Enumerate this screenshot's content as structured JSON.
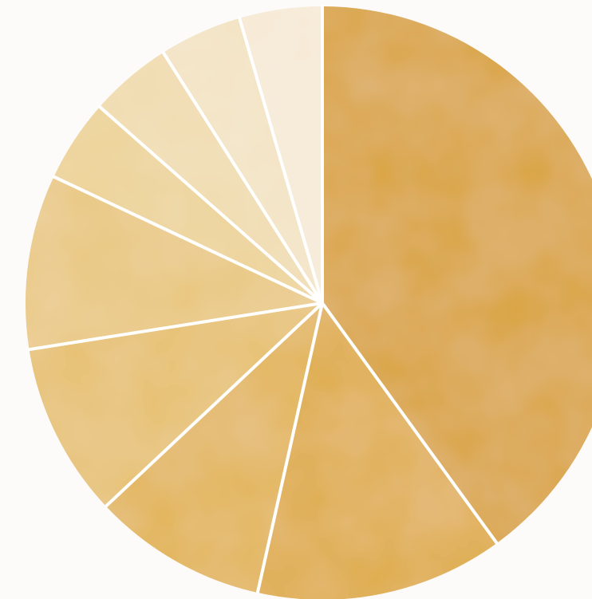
{
  "chart_data": {
    "type": "pie",
    "start_angle": "12 o'clock",
    "direction": "clockwise",
    "title": "",
    "legend": "none",
    "slices": [
      {
        "value": 40.0,
        "color": "#d9a234"
      },
      {
        "value": 13.5,
        "color": "#dfab43"
      },
      {
        "value": 9.5,
        "color": "#e2b456"
      },
      {
        "value": 9.5,
        "color": "#e6bf6d"
      },
      {
        "value": 9.5,
        "color": "#e9c780"
      },
      {
        "value": 4.5,
        "color": "#edd295"
      },
      {
        "value": 4.5,
        "color": "#f0dbad"
      },
      {
        "value": 4.5,
        "color": "#f3e3c3"
      },
      {
        "value": 4.5,
        "color": "#f7ead7"
      }
    ],
    "separator_color": "#ffffff",
    "grid": false
  }
}
